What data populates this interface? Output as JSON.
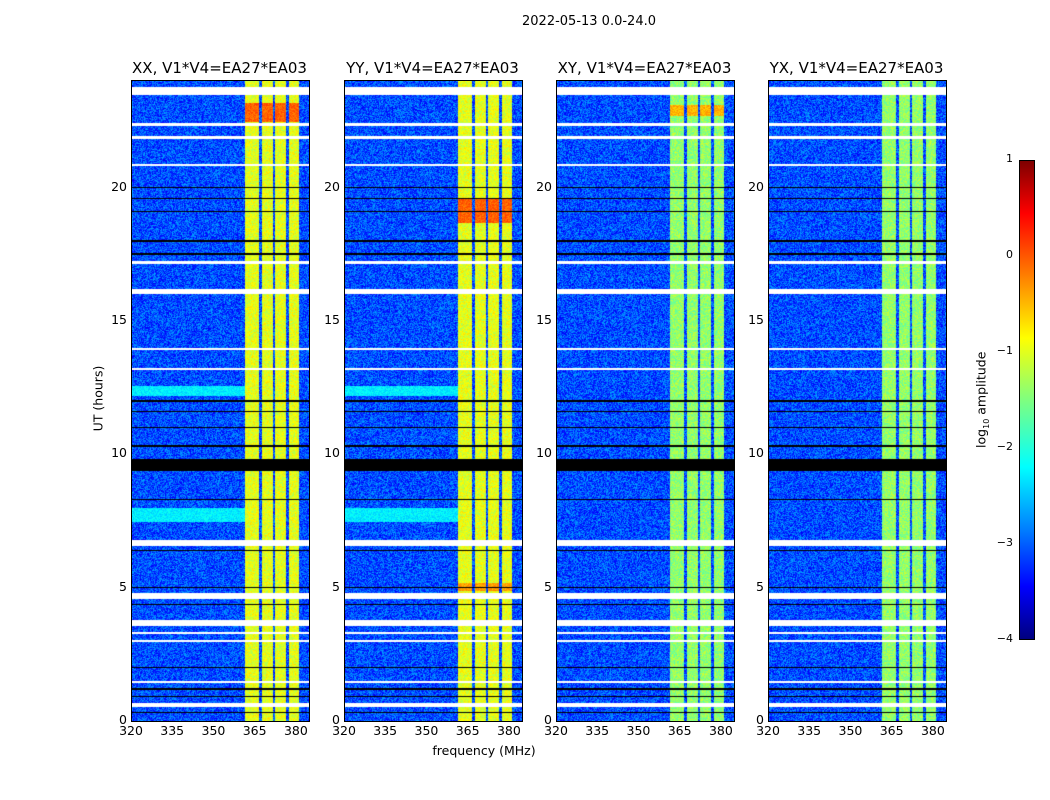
{
  "suptitle": "2022-05-13 0.0-24.0",
  "ylabel": "UT (hours)",
  "xlabel": "frequency (MHz)",
  "colorbar": {
    "label_main": "log",
    "label_sub": "10",
    "label_rest": " amplitude",
    "range": [
      -4,
      1
    ],
    "ticks": [
      "1",
      "0",
      "−1",
      "−2",
      "−3",
      "−4"
    ],
    "ticks_values": [
      1,
      0,
      -1,
      -2,
      -3,
      -4
    ],
    "colormap": "jet"
  },
  "chart_data": {
    "type": "heatmap",
    "xlim": [
      320,
      384.4
    ],
    "ylim": [
      0,
      24
    ],
    "xticks": [
      "320",
      "335",
      "350",
      "365",
      "380"
    ],
    "xtick_values": [
      320,
      335,
      350,
      365,
      380
    ],
    "yticks": [
      "0",
      "5",
      "10",
      "15",
      "20"
    ],
    "ytick_values": [
      0,
      5,
      10,
      15,
      20
    ],
    "background_level": -3.0,
    "band_strips_mhz": [
      [
        361,
        366
      ],
      [
        367,
        371
      ],
      [
        372,
        376
      ],
      [
        377,
        380.5
      ]
    ],
    "flagged_white_ut": [
      [
        23.5,
        23.8
      ],
      [
        22.35,
        22.45
      ],
      [
        21.85,
        21.95
      ],
      [
        20.85,
        20.92
      ],
      [
        17.15,
        17.25
      ],
      [
        16.05,
        16.2
      ],
      [
        13.95,
        14.02
      ],
      [
        13.2,
        13.27
      ],
      [
        6.6,
        6.8
      ],
      [
        4.58,
        4.82
      ],
      [
        3.6,
        3.8
      ],
      [
        3.28,
        3.35
      ],
      [
        3.0,
        3.06
      ],
      [
        1.45,
        1.52
      ],
      [
        0.55,
        0.7
      ]
    ],
    "flagged_black_ut": [
      [
        20.0,
        20.05
      ],
      [
        19.6,
        19.64
      ],
      [
        19.1,
        19.14
      ],
      [
        18.0,
        18.05
      ],
      [
        17.5,
        17.55
      ],
      [
        12.0,
        12.06
      ],
      [
        11.6,
        11.65
      ],
      [
        11.0,
        11.05
      ],
      [
        10.3,
        10.36
      ],
      [
        9.4,
        9.85
      ],
      [
        8.3,
        8.34
      ],
      [
        6.38,
        6.43
      ],
      [
        5.0,
        5.05
      ],
      [
        4.38,
        4.42
      ],
      [
        2.0,
        2.05
      ],
      [
        1.2,
        1.25
      ],
      [
        0.9,
        0.95
      ],
      [
        0.3,
        0.34
      ]
    ],
    "panels": [
      {
        "title": "XX, V1*V4=EA27*EA03",
        "band_level": -1.0,
        "hot": [
          {
            "ut": [
              22.5,
              23.2
            ],
            "level": -0.1
          }
        ],
        "rfi_rows": [
          [
            12.2,
            12.6,
            -2.2
          ],
          [
            7.5,
            8.0,
            -2.2
          ]
        ]
      },
      {
        "title": "YY, V1*V4=EA27*EA03",
        "band_level": -1.0,
        "hot": [
          {
            "ut": [
              18.7,
              19.6
            ],
            "level": -0.1
          },
          {
            "ut": [
              4.9,
              5.2
            ],
            "level": -0.4
          }
        ],
        "rfi_rows": [
          [
            12.2,
            12.6,
            -2.2
          ],
          [
            7.5,
            8.0,
            -2.2
          ]
        ]
      },
      {
        "title": "XY, V1*V4=EA27*EA03",
        "band_level": -1.4,
        "hot": [
          {
            "ut": [
              22.7,
              23.1
            ],
            "level": -0.5
          }
        ],
        "rfi_rows": []
      },
      {
        "title": "YX, V1*V4=EA27*EA03",
        "band_level": -1.4,
        "hot": [],
        "rfi_rows": []
      }
    ]
  }
}
